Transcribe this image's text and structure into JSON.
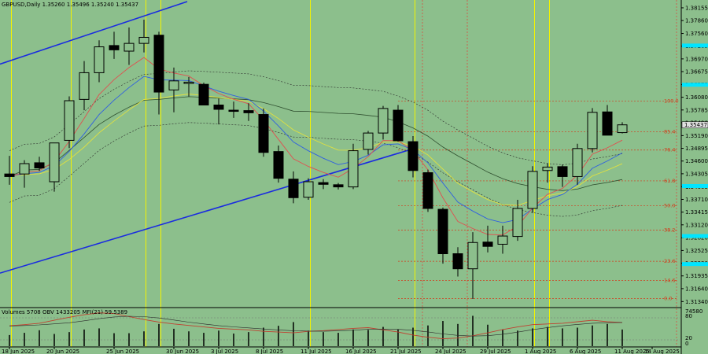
{
  "chart_data": {
    "type": "candlestick",
    "symbol_header": "GBPUSD,Daily  1.35260 1.35496 1.35240 1.35437",
    "price_axis": {
      "ylim": [
        1.312,
        1.383
      ],
      "ticks": [
        1.38155,
        1.3786,
        1.3756,
        1.37265,
        1.3697,
        1.36675,
        1.36375,
        1.3608,
        1.35785,
        1.3549,
        1.3519,
        1.34895,
        1.346,
        1.34305,
        1.34005,
        1.3371,
        1.33415,
        1.3312,
        1.3282,
        1.32525,
        1.3223,
        1.31935,
        1.3164,
        1.3134
      ],
      "tick_labels": [
        "1.38155",
        "1.37860",
        "1.37560",
        "1.37265",
        "1.36970",
        "1.36675",
        "1.36375",
        "1.36080",
        "1.35785",
        "1.35490",
        "1.35190",
        "1.34895",
        "1.34600",
        "1.34305",
        "1.34005",
        "1.33710",
        "1.33415",
        "1.33120",
        "1.32820",
        "1.32525",
        "1.32230",
        "1.31935",
        "1.31640",
        "1.31340"
      ],
      "current_price_label": "1.35437",
      "highlight_levels": [
        1.3728,
        1.3637,
        1.3402,
        1.3286,
        1.3221
      ]
    },
    "x_axis": {
      "date_labels": [
        "18 Jun 2025",
        "20 Jun 2025",
        "25 Jun 2025",
        "30 Jun 2025",
        "3 Jul 2025",
        "8 Jul 2025",
        "11 Jul 2025",
        "16 Jul 2025",
        "21 Jul 2025",
        "24 Jul 2025",
        "29 Jul 2025",
        "1 Aug 2025",
        "6 Aug 2025",
        "11 Aug 2025",
        "14 Aug 2025"
      ],
      "label_bar_index": [
        0,
        3,
        7,
        11,
        14,
        17,
        20,
        23,
        26,
        29,
        32,
        35,
        38,
        41,
        43
      ]
    },
    "candles": [
      {
        "o": 1.343,
        "h": 1.3472,
        "l": 1.3405,
        "c": 1.3424
      },
      {
        "o": 1.343,
        "h": 1.3462,
        "l": 1.3398,
        "c": 1.3454
      },
      {
        "o": 1.3456,
        "h": 1.347,
        "l": 1.3437,
        "c": 1.3444
      },
      {
        "o": 1.3412,
        "h": 1.35,
        "l": 1.3389,
        "c": 1.3502
      },
      {
        "o": 1.3508,
        "h": 1.361,
        "l": 1.349,
        "c": 1.36
      },
      {
        "o": 1.3603,
        "h": 1.3692,
        "l": 1.3578,
        "c": 1.3665
      },
      {
        "o": 1.3665,
        "h": 1.374,
        "l": 1.3643,
        "c": 1.3725
      },
      {
        "o": 1.3728,
        "h": 1.376,
        "l": 1.3697,
        "c": 1.3718
      },
      {
        "o": 1.3715,
        "h": 1.377,
        "l": 1.3683,
        "c": 1.3733
      },
      {
        "o": 1.3733,
        "h": 1.3788,
        "l": 1.3712,
        "c": 1.3747
      },
      {
        "o": 1.3752,
        "h": 1.376,
        "l": 1.3568,
        "c": 1.362
      },
      {
        "o": 1.3625,
        "h": 1.3677,
        "l": 1.3573,
        "c": 1.3646
      },
      {
        "o": 1.364,
        "h": 1.3655,
        "l": 1.361,
        "c": 1.3643
      },
      {
        "o": 1.3638,
        "h": 1.3642,
        "l": 1.3595,
        "c": 1.359
      },
      {
        "o": 1.359,
        "h": 1.3605,
        "l": 1.3545,
        "c": 1.358
      },
      {
        "o": 1.3578,
        "h": 1.3598,
        "l": 1.356,
        "c": 1.3577
      },
      {
        "o": 1.3577,
        "h": 1.3594,
        "l": 1.3553,
        "c": 1.3572
      },
      {
        "o": 1.3568,
        "h": 1.3582,
        "l": 1.347,
        "c": 1.348
      },
      {
        "o": 1.3482,
        "h": 1.3496,
        "l": 1.341,
        "c": 1.342
      },
      {
        "o": 1.3418,
        "h": 1.3436,
        "l": 1.3362,
        "c": 1.3375
      },
      {
        "o": 1.3376,
        "h": 1.342,
        "l": 1.337,
        "c": 1.3412
      },
      {
        "o": 1.341,
        "h": 1.3418,
        "l": 1.3395,
        "c": 1.3406
      },
      {
        "o": 1.3405,
        "h": 1.3409,
        "l": 1.3394,
        "c": 1.34
      },
      {
        "o": 1.34,
        "h": 1.35,
        "l": 1.3395,
        "c": 1.3484
      },
      {
        "o": 1.3487,
        "h": 1.353,
        "l": 1.3475,
        "c": 1.3525
      },
      {
        "o": 1.3525,
        "h": 1.3588,
        "l": 1.351,
        "c": 1.3582
      },
      {
        "o": 1.3578,
        "h": 1.359,
        "l": 1.3505,
        "c": 1.3507
      },
      {
        "o": 1.3505,
        "h": 1.3518,
        "l": 1.3422,
        "c": 1.3438
      },
      {
        "o": 1.3433,
        "h": 1.344,
        "l": 1.3342,
        "c": 1.335
      },
      {
        "o": 1.3348,
        "h": 1.3352,
        "l": 1.3222,
        "c": 1.3245
      },
      {
        "o": 1.3245,
        "h": 1.326,
        "l": 1.3192,
        "c": 1.321
      },
      {
        "o": 1.321,
        "h": 1.3295,
        "l": 1.314,
        "c": 1.3271
      },
      {
        "o": 1.3272,
        "h": 1.331,
        "l": 1.3248,
        "c": 1.3262
      },
      {
        "o": 1.3267,
        "h": 1.331,
        "l": 1.3245,
        "c": 1.3286
      },
      {
        "o": 1.3285,
        "h": 1.337,
        "l": 1.3275,
        "c": 1.335
      },
      {
        "o": 1.335,
        "h": 1.3448,
        "l": 1.334,
        "c": 1.3436
      },
      {
        "o": 1.3438,
        "h": 1.3455,
        "l": 1.341,
        "c": 1.3446
      },
      {
        "o": 1.3447,
        "h": 1.3452,
        "l": 1.34,
        "c": 1.3424
      },
      {
        "o": 1.3424,
        "h": 1.35,
        "l": 1.3405,
        "c": 1.3489
      },
      {
        "o": 1.3489,
        "h": 1.3583,
        "l": 1.348,
        "c": 1.3573
      },
      {
        "o": 1.3574,
        "h": 1.359,
        "l": 1.352,
        "c": 1.352
      },
      {
        "o": 1.3526,
        "h": 1.355,
        "l": 1.3524,
        "c": 1.3544
      }
    ],
    "fibonacci": [
      {
        "label": "100.0",
        "price": 1.3599
      },
      {
        "label": "85.4",
        "price": 1.3528
      },
      {
        "label": "76.4",
        "price": 1.34855
      },
      {
        "label": "61.8",
        "price": 1.3414
      },
      {
        "label": "50.0",
        "price": 1.33565
      },
      {
        "label": "38.2",
        "price": 1.32995
      },
      {
        "label": "23.6",
        "price": 1.32275
      },
      {
        "label": "14.6",
        "price": 1.3183
      },
      {
        "label": "0.0",
        "price": 1.3141
      }
    ],
    "vlines_yellow": [
      0,
      4,
      9,
      10,
      20,
      27,
      35,
      36
    ],
    "vlines_red": [
      28,
      31,
      45
    ],
    "indicator": {
      "header": "Volumes 5708  OBV 1433205  MFI(21) 59.5389",
      "ylabels": [
        "74580",
        "80",
        "20",
        "0"
      ],
      "volumes": [
        0.3,
        0.36,
        0.43,
        0.33,
        0.38,
        0.45,
        0.48,
        0.35,
        0.35,
        0.4,
        0.6,
        0.47,
        0.4,
        0.36,
        0.42,
        0.34,
        0.38,
        0.5,
        0.55,
        0.65,
        0.42,
        0.38,
        0.36,
        0.45,
        0.44,
        0.52,
        0.45,
        0.5,
        0.56,
        0.68,
        0.6,
        0.82,
        0.58,
        0.45,
        0.42,
        0.48,
        0.52,
        0.48,
        0.5,
        0.56,
        0.6,
        0.45
      ],
      "mfi": [
        0.55,
        0.58,
        0.62,
        0.7,
        0.78,
        0.85,
        0.9,
        0.88,
        0.8,
        0.72,
        0.65,
        0.6,
        0.56,
        0.52,
        0.48,
        0.46,
        0.44,
        0.4,
        0.38,
        0.36,
        0.4,
        0.42,
        0.45,
        0.48,
        0.5,
        0.44,
        0.38,
        0.3,
        0.24,
        0.2,
        0.22,
        0.28,
        0.36,
        0.45,
        0.52,
        0.58,
        0.6,
        0.62,
        0.66,
        0.7,
        0.66,
        0.64
      ]
    }
  }
}
